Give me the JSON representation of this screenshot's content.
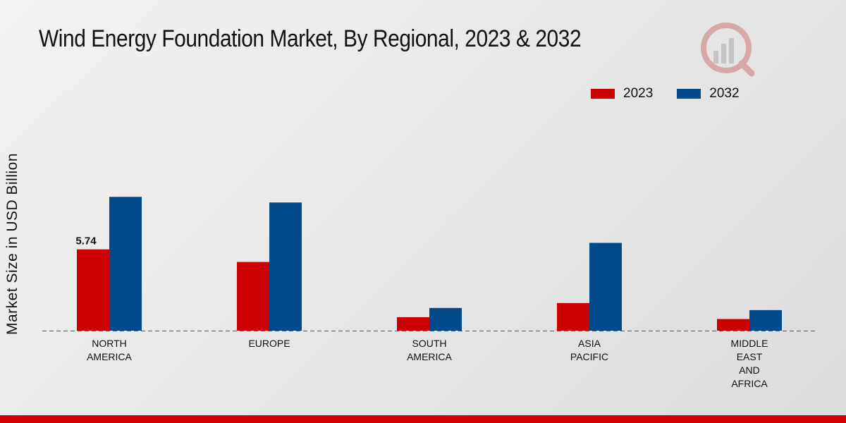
{
  "chart_data": {
    "type": "bar",
    "title": "Wind Energy Foundation Market, By Regional, 2023 & 2032",
    "xlabel": "",
    "ylabel": "Market Size in USD Billion",
    "categories": [
      [
        "NORTH",
        "AMERICA"
      ],
      [
        "EUROPE"
      ],
      [
        "SOUTH",
        "AMERICA"
      ],
      [
        "ASIA",
        "PACIFIC"
      ],
      [
        "MIDDLE",
        "EAST",
        "AND",
        "AFRICA"
      ]
    ],
    "series": [
      {
        "name": "2023",
        "color": "#cc0000",
        "values": [
          5.74,
          4.85,
          0.95,
          1.95,
          0.82
        ]
      },
      {
        "name": "2032",
        "color": "#004a8c",
        "values": [
          9.45,
          9.05,
          1.6,
          6.2,
          1.45
        ]
      }
    ],
    "data_labels": [
      {
        "series": 0,
        "index": 0,
        "text": "5.74"
      }
    ],
    "ylim": [
      0,
      12
    ],
    "grid": false,
    "legend_position": "top-right"
  }
}
